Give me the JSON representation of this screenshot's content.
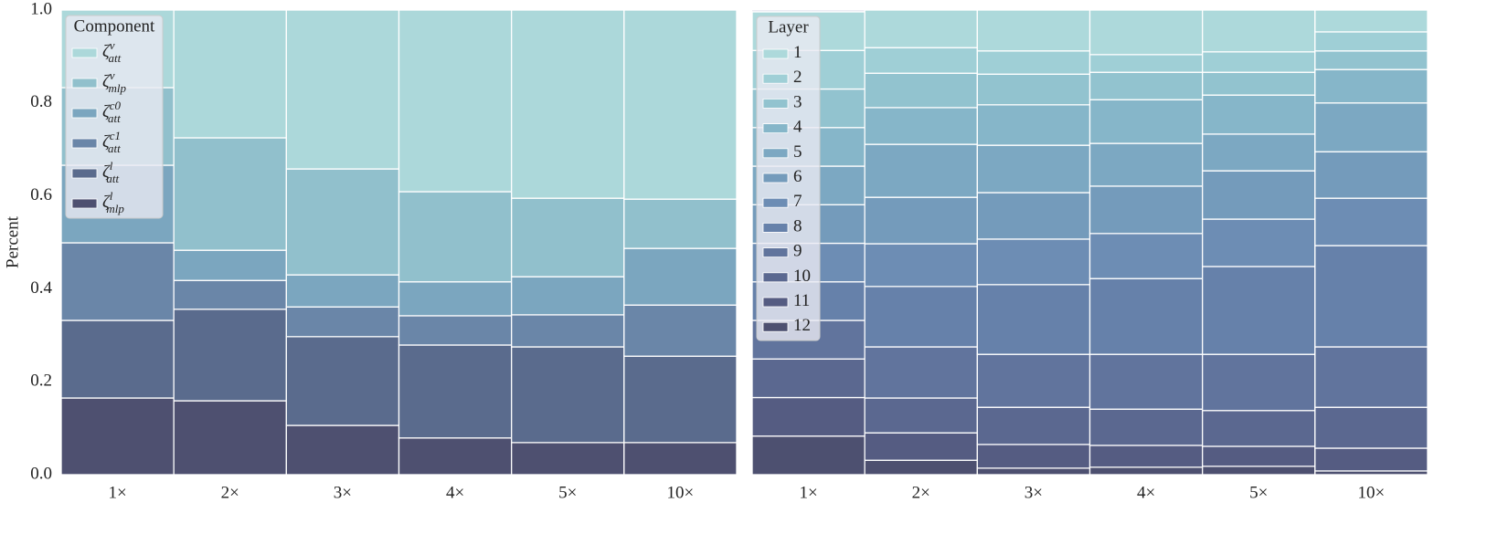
{
  "chart_data": [
    {
      "type": "stacked-bar",
      "y_label": "Percent",
      "legend_title": "Component",
      "categories": [
        "1×",
        "2×",
        "3×",
        "4×",
        "5×",
        "10×"
      ],
      "ylim": [
        0,
        1
      ],
      "yticks": [
        {
          "value": 0,
          "label": "0.0"
        },
        0.2,
        0.4,
        0.6,
        0.8,
        {
          "value": 1,
          "label": "1.0"
        }
      ],
      "series": [
        {
          "name": "ζ",
          "superscript": "v",
          "subscript": "att",
          "color": "#acd8da",
          "values": [
            0.167,
            0.275,
            0.342,
            0.391,
            0.405,
            0.407
          ]
        },
        {
          "name": "ζ",
          "superscript": "v",
          "subscript": "mlp",
          "color": "#91c0cc",
          "values": [
            0.167,
            0.242,
            0.228,
            0.194,
            0.169,
            0.106
          ]
        },
        {
          "name": "ζ",
          "superscript": "c0",
          "subscript": "att",
          "color": "#7ba6bf",
          "values": [
            0.167,
            0.065,
            0.069,
            0.073,
            0.082,
            0.122
          ]
        },
        {
          "name": "ζ",
          "superscript": "c1",
          "subscript": "att",
          "color": "#6a86a8",
          "values": [
            0.167,
            0.062,
            0.064,
            0.063,
            0.069,
            0.11
          ]
        },
        {
          "name": "ζ",
          "superscript": "l",
          "subscript": "att",
          "color": "#5a6b8d",
          "values": [
            0.167,
            0.197,
            0.191,
            0.2,
            0.206,
            0.186
          ]
        },
        {
          "name": "ζ",
          "superscript": "l",
          "subscript": "mlp",
          "color": "#4e5070",
          "values": [
            0.165,
            0.159,
            0.106,
            0.079,
            0.069,
            0.069
          ]
        }
      ]
    },
    {
      "type": "stacked-bar",
      "legend_title": "Layer",
      "categories": [
        "1×",
        "2×",
        "3×",
        "4×",
        "5×",
        "10×"
      ],
      "ylim": [
        0,
        1
      ],
      "series": [
        {
          "name": "1",
          "color": "#add9db",
          "values": [
            0.083,
            0.081,
            0.088,
            0.096,
            0.09,
            0.047
          ]
        },
        {
          "name": "2",
          "color": "#9fcfd6",
          "values": [
            0.083,
            0.055,
            0.05,
            0.038,
            0.044,
            0.041
          ]
        },
        {
          "name": "3",
          "color": "#92c3cf",
          "values": [
            0.083,
            0.074,
            0.066,
            0.059,
            0.049,
            0.04
          ]
        },
        {
          "name": "4",
          "color": "#86b6c9",
          "values": [
            0.083,
            0.079,
            0.087,
            0.094,
            0.084,
            0.072
          ]
        },
        {
          "name": "5",
          "color": "#7ca8c2",
          "values": [
            0.083,
            0.114,
            0.102,
            0.092,
            0.079,
            0.105
          ]
        },
        {
          "name": "6",
          "color": "#749bbb",
          "values": [
            0.083,
            0.1,
            0.1,
            0.102,
            0.104,
            0.1
          ]
        },
        {
          "name": "7",
          "color": "#6d8db4",
          "values": [
            0.083,
            0.092,
            0.098,
            0.097,
            0.102,
            0.102
          ]
        },
        {
          "name": "8",
          "color": "#6681aa",
          "values": [
            0.083,
            0.13,
            0.15,
            0.163,
            0.189,
            0.218
          ]
        },
        {
          "name": "9",
          "color": "#61749d",
          "values": [
            0.083,
            0.11,
            0.114,
            0.118,
            0.121,
            0.13
          ]
        },
        {
          "name": "10",
          "color": "#5b6890",
          "values": [
            0.083,
            0.075,
            0.08,
            0.078,
            0.077,
            0.088
          ]
        },
        {
          "name": "11",
          "color": "#555c82",
          "values": [
            0.083,
            0.059,
            0.051,
            0.047,
            0.043,
            0.049
          ]
        },
        {
          "name": "12",
          "color": "#4d5070",
          "values": [
            0.083,
            0.031,
            0.014,
            0.016,
            0.018,
            0.008
          ]
        }
      ]
    }
  ]
}
